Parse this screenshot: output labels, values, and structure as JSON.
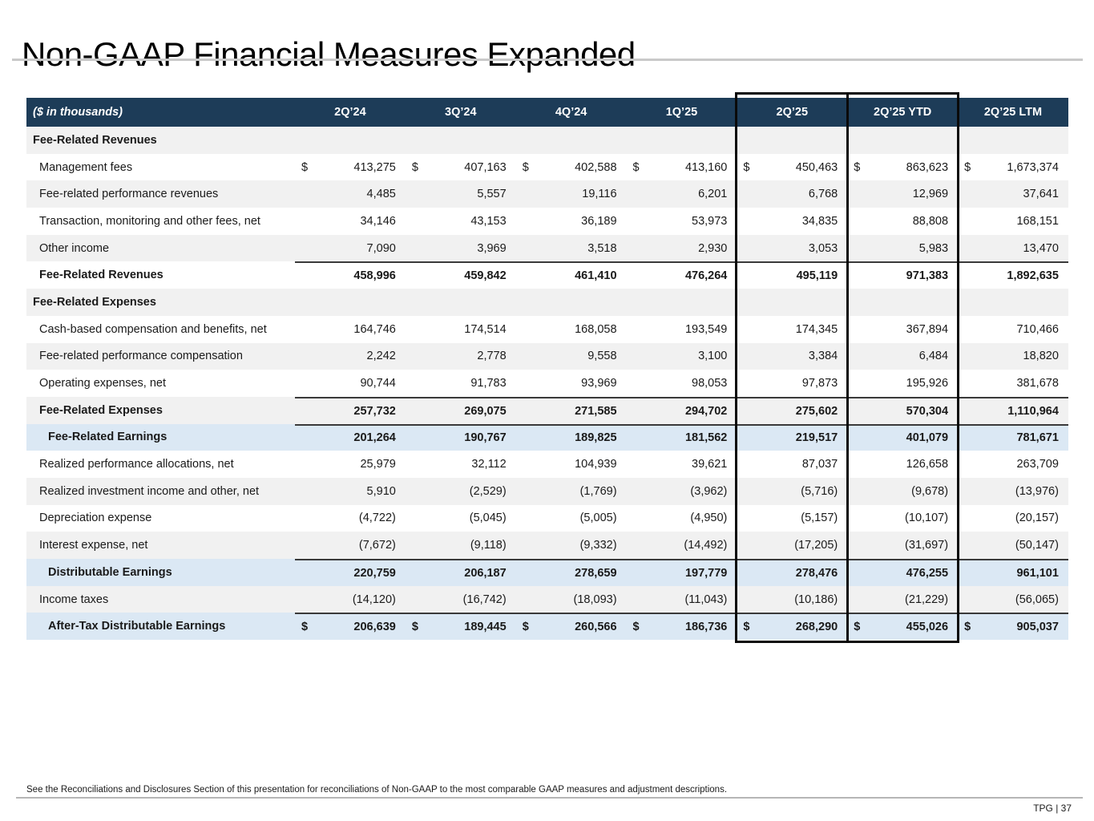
{
  "slide": {
    "title": "Non-GAAP Financial Measures Expanded",
    "footnote": "See the Reconciliations and Disclosures Section of this presentation for reconciliations of Non-GAAP to the most comparable GAAP measures and adjustment descriptions.",
    "page_label": "TPG | 37"
  },
  "colors": {
    "header_bar": "#1d3c58",
    "stripe_gray": "#f1f1f1",
    "highlight_blue": "#dbe8f4",
    "box_outline": "#0a0a0a"
  },
  "table": {
    "unit_label": "($ in thousands)",
    "currency_symbol": "$",
    "columns": [
      "2Q’24",
      "3Q’24",
      "4Q’24",
      "1Q’25",
      "2Q’25",
      "2Q’25 YTD",
      "2Q’25 LTM"
    ],
    "boxed_columns": [
      "2Q’25",
      "2Q’25 YTD"
    ],
    "rows": [
      {
        "label": "Fee-Related Revenues",
        "type": "section",
        "bg": "gray",
        "dollar": false,
        "topline": false,
        "values": [
          "",
          "",
          "",
          "",
          "",
          "",
          ""
        ]
      },
      {
        "label": "Management fees",
        "type": "data",
        "bg": "white",
        "dollar": true,
        "topline": false,
        "values": [
          "413,275",
          "407,163",
          "402,588",
          "413,160",
          "450,463",
          "863,623",
          "1,673,374"
        ]
      },
      {
        "label": "Fee-related performance revenues",
        "type": "data",
        "bg": "gray",
        "dollar": false,
        "topline": false,
        "values": [
          "4,485",
          "5,557",
          "19,116",
          "6,201",
          "6,768",
          "12,969",
          "37,641"
        ]
      },
      {
        "label": "Transaction, monitoring and other fees, net",
        "type": "data",
        "bg": "white",
        "dollar": false,
        "topline": false,
        "values": [
          "34,146",
          "43,153",
          "36,189",
          "53,973",
          "34,835",
          "88,808",
          "168,151"
        ]
      },
      {
        "label": "Other income",
        "type": "data",
        "bg": "gray",
        "dollar": false,
        "topline": false,
        "values": [
          "7,090",
          "3,969",
          "3,518",
          "2,930",
          "3,053",
          "5,983",
          "13,470"
        ]
      },
      {
        "label": "Fee-Related Revenues",
        "type": "total",
        "bg": "white",
        "dollar": false,
        "topline": true,
        "values": [
          "458,996",
          "459,842",
          "461,410",
          "476,264",
          "495,119",
          "971,383",
          "1,892,635"
        ]
      },
      {
        "label": "Fee-Related Expenses",
        "type": "section",
        "bg": "gray",
        "dollar": false,
        "topline": false,
        "values": [
          "",
          "",
          "",
          "",
          "",
          "",
          ""
        ]
      },
      {
        "label": "Cash-based compensation and benefits, net",
        "type": "data",
        "bg": "white",
        "dollar": false,
        "topline": false,
        "values": [
          "164,746",
          "174,514",
          "168,058",
          "193,549",
          "174,345",
          "367,894",
          "710,466"
        ]
      },
      {
        "label": "Fee-related performance compensation",
        "type": "data",
        "bg": "gray",
        "dollar": false,
        "topline": false,
        "values": [
          "2,242",
          "2,778",
          "9,558",
          "3,100",
          "3,384",
          "6,484",
          "18,820"
        ]
      },
      {
        "label": "Operating expenses, net",
        "type": "data",
        "bg": "white",
        "dollar": false,
        "topline": false,
        "values": [
          "90,744",
          "91,783",
          "93,969",
          "98,053",
          "97,873",
          "195,926",
          "381,678"
        ]
      },
      {
        "label": "Fee-Related Expenses",
        "type": "total",
        "bg": "gray",
        "dollar": false,
        "topline": true,
        "values": [
          "257,732",
          "269,075",
          "271,585",
          "294,702",
          "275,602",
          "570,304",
          "1,110,964"
        ]
      },
      {
        "label": "Fee-Related Earnings",
        "type": "highlight",
        "bg": "blue",
        "dollar": false,
        "topline": true,
        "values": [
          "201,264",
          "190,767",
          "189,825",
          "181,562",
          "219,517",
          "401,079",
          "781,671"
        ]
      },
      {
        "label": "Realized performance allocations, net",
        "type": "data",
        "bg": "white",
        "dollar": false,
        "topline": false,
        "values": [
          "25,979",
          "32,112",
          "104,939",
          "39,621",
          "87,037",
          "126,658",
          "263,709"
        ]
      },
      {
        "label": "Realized investment income and other, net",
        "type": "data",
        "bg": "gray",
        "dollar": false,
        "topline": false,
        "values": [
          "5,910",
          "(2,529)",
          "(1,769)",
          "(3,962)",
          "(5,716)",
          "(9,678)",
          "(13,976)"
        ]
      },
      {
        "label": "Depreciation expense",
        "type": "data",
        "bg": "white",
        "dollar": false,
        "topline": false,
        "values": [
          "(4,722)",
          "(5,045)",
          "(5,005)",
          "(4,950)",
          "(5,157)",
          "(10,107)",
          "(20,157)"
        ]
      },
      {
        "label": "Interest expense, net",
        "type": "data",
        "bg": "gray",
        "dollar": false,
        "topline": false,
        "values": [
          "(7,672)",
          "(9,118)",
          "(9,332)",
          "(14,492)",
          "(17,205)",
          "(31,697)",
          "(50,147)"
        ]
      },
      {
        "label": "Distributable Earnings",
        "type": "highlight",
        "bg": "blue",
        "dollar": false,
        "topline": true,
        "values": [
          "220,759",
          "206,187",
          "278,659",
          "197,779",
          "278,476",
          "476,255",
          "961,101"
        ]
      },
      {
        "label": "Income taxes",
        "type": "data",
        "bg": "gray",
        "dollar": false,
        "topline": false,
        "values": [
          "(14,120)",
          "(16,742)",
          "(18,093)",
          "(11,043)",
          "(10,186)",
          "(21,229)",
          "(56,065)"
        ]
      },
      {
        "label": "After-Tax Distributable Earnings",
        "type": "highlight",
        "bg": "blue",
        "dollar": true,
        "topline": true,
        "values": [
          "206,639",
          "189,445",
          "260,566",
          "186,736",
          "268,290",
          "455,026",
          "905,037"
        ]
      }
    ]
  }
}
